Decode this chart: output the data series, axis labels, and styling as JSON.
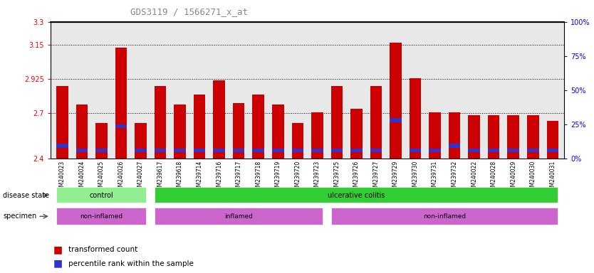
{
  "title": "GDS3119 / 1566271_x_at",
  "samples": [
    "GSM240023",
    "GSM240024",
    "GSM240025",
    "GSM240026",
    "GSM240027",
    "GSM239617",
    "GSM239618",
    "GSM239714",
    "GSM239716",
    "GSM239717",
    "GSM239718",
    "GSM239719",
    "GSM239720",
    "GSM239723",
    "GSM239725",
    "GSM239726",
    "GSM239727",
    "GSM239729",
    "GSM239730",
    "GSM239731",
    "GSM239732",
    "GSM240022",
    "GSM240028",
    "GSM240029",
    "GSM240030",
    "GSM240031"
  ],
  "red_values": [
    2.875,
    2.755,
    2.635,
    3.13,
    2.635,
    2.875,
    2.755,
    2.82,
    2.915,
    2.765,
    2.82,
    2.755,
    2.635,
    2.705,
    2.875,
    2.725,
    2.875,
    3.165,
    2.93,
    2.705,
    2.705,
    2.685,
    2.685,
    2.685,
    2.685,
    2.645
  ],
  "blue_values": [
    2.47,
    2.44,
    2.44,
    2.6,
    2.44,
    2.44,
    2.44,
    2.44,
    2.44,
    2.44,
    2.44,
    2.44,
    2.44,
    2.44,
    2.44,
    2.44,
    2.44,
    2.64,
    2.44,
    2.44,
    2.47,
    2.44,
    2.44,
    2.44,
    2.44,
    2.44
  ],
  "ylim": [
    2.4,
    3.3
  ],
  "yticks_left": [
    2.4,
    2.7,
    2.925,
    3.15,
    3.3
  ],
  "yticks_right": [
    0,
    25,
    50,
    75,
    100
  ],
  "ytick_labels_left": [
    "2.4",
    "2.7",
    "2.925",
    "3.15",
    "3.3"
  ],
  "ytick_labels_right": [
    "0%",
    "25%",
    "50%",
    "75%",
    "100%"
  ],
  "grid_lines": [
    2.7,
    2.925,
    3.15
  ],
  "bar_color_red": "#cc0000",
  "bar_color_blue": "#3333cc",
  "control_color": "#90ee90",
  "uc_color": "#32cd32",
  "non_inflamed_color": "#cc66cc",
  "inflamed_color": "#cc66cc",
  "bar_width": 0.6,
  "bg_color": "#e8e8e8",
  "blue_bar_height": 0.025
}
